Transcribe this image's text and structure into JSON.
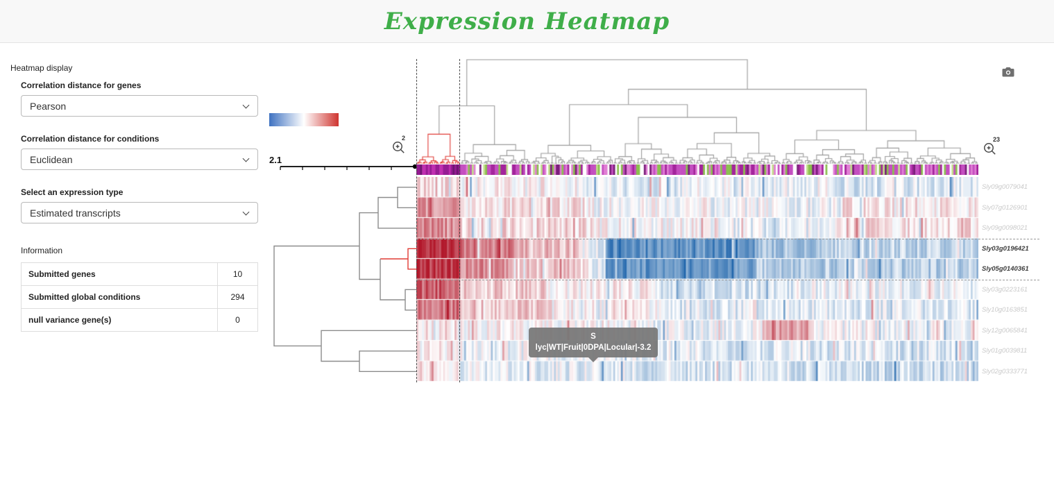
{
  "header": {
    "title": "Expression Heatmap"
  },
  "icons": {
    "camera": "camera-icon",
    "zoom": "zoom-in-magnifier-icon",
    "chevron": "chevron-down-icon"
  },
  "sidebar": {
    "section_label": "Heatmap display",
    "controls": [
      {
        "label": "Correlation distance for genes",
        "value": "Pearson"
      },
      {
        "label": "Correlation distance for conditions",
        "value": "Euclidean"
      },
      {
        "label": "Select an expression type",
        "value": "Estimated transcripts"
      }
    ],
    "information": {
      "label": "Information",
      "rows": [
        {
          "label": "Submitted genes",
          "value": "10"
        },
        {
          "label": "Submitted global conditions",
          "value": "294"
        },
        {
          "label": "null variance gene(s)",
          "value": "0"
        }
      ]
    }
  },
  "chart_data": {
    "type": "heatmap",
    "title": "Expression Heatmap",
    "n_conditions": 294,
    "n_genes": 10,
    "distance_threshold": "2.1",
    "zoom_left_badge": "2",
    "zoom_right_badge": "23",
    "genes": [
      {
        "label": "Sly09g0079041",
        "emphasized": false
      },
      {
        "label": "Sly07g0126901",
        "emphasized": false
      },
      {
        "label": "Sly09g0098021",
        "emphasized": false
      },
      {
        "label": "Sly03g0196421",
        "emphasized": true
      },
      {
        "label": "Sly05g0140361",
        "emphasized": true
      },
      {
        "label": "Sly03g0223161",
        "emphasized": false
      },
      {
        "label": "Sly10g0163851",
        "emphasized": false
      },
      {
        "label": "Sly12g0065841",
        "emphasized": false
      },
      {
        "label": "Sly01g0039811",
        "emphasized": false
      },
      {
        "label": "Sly02g0333771",
        "emphasized": false
      }
    ],
    "selected_genes": [
      "Sly03g0196421",
      "Sly05g0140361"
    ],
    "selected_columns": [
      0,
      23
    ],
    "tooltip": {
      "text": "S lyc|WT|Fruit|0DPA|Locular|-3.2"
    },
    "colors": {
      "low": "#2166ac",
      "mid": "#ffffff",
      "high": "#b2182b",
      "dendrogram": "#9a9a9a",
      "selected_cluster": "#e03a34"
    },
    "legend": {
      "colors": [
        "#3f72c1",
        "#ffffff",
        "#cf3530"
      ]
    },
    "row_profiles": [
      [
        [
          0.077,
          0.18
        ],
        [
          0.21,
          0.03
        ],
        [
          0.21,
          -0.12
        ],
        [
          0.25,
          -0.06
        ],
        [
          0.253,
          -0.15
        ]
      ],
      [
        [
          0.077,
          0.42
        ],
        [
          0.24,
          0.12
        ],
        [
          0.2,
          0.0
        ],
        [
          0.24,
          -0.06
        ],
        [
          0.243,
          0.1
        ]
      ],
      [
        [
          0.077,
          0.5
        ],
        [
          0.24,
          0.15
        ],
        [
          0.23,
          0.02
        ],
        [
          0.2,
          -0.08
        ],
        [
          0.253,
          0.12
        ]
      ],
      [
        [
          0.077,
          0.95
        ],
        [
          0.1,
          0.55
        ],
        [
          0.13,
          0.28
        ],
        [
          0.03,
          -0.1
        ],
        [
          0.27,
          -0.72
        ],
        [
          0.12,
          -0.4
        ],
        [
          0.273,
          -0.28
        ]
      ],
      [
        [
          0.077,
          0.9
        ],
        [
          0.1,
          0.48
        ],
        [
          0.13,
          0.22
        ],
        [
          0.03,
          -0.15
        ],
        [
          0.27,
          -0.68
        ],
        [
          0.12,
          -0.35
        ],
        [
          0.273,
          -0.33
        ]
      ],
      [
        [
          0.077,
          0.68
        ],
        [
          0.15,
          0.22
        ],
        [
          0.2,
          0.05
        ],
        [
          0.25,
          -0.18
        ],
        [
          0.323,
          -0.08
        ]
      ],
      [
        [
          0.077,
          0.58
        ],
        [
          0.17,
          0.24
        ],
        [
          0.2,
          0.02
        ],
        [
          0.25,
          -0.12
        ],
        [
          0.303,
          -0.14
        ]
      ],
      [
        [
          0.077,
          0.12
        ],
        [
          0.3,
          0.02
        ],
        [
          0.24,
          -0.06
        ],
        [
          0.09,
          0.38
        ],
        [
          0.293,
          -0.04
        ]
      ],
      [
        [
          0.077,
          0.06
        ],
        [
          0.3,
          -0.05
        ],
        [
          0.3,
          -0.12
        ],
        [
          0.323,
          -0.16
        ]
      ],
      [
        [
          0.077,
          0.12
        ],
        [
          0.3,
          -0.1
        ],
        [
          0.3,
          -0.16
        ],
        [
          0.323,
          -0.22
        ]
      ]
    ],
    "annotation": {
      "palette": [
        [
          "#c44fc0",
          0.3
        ],
        [
          "#a4259c",
          0.18
        ],
        [
          "#e07fd4",
          0.14
        ],
        [
          "#ffffff",
          0.12
        ],
        [
          "#8bbf4f",
          0.14
        ],
        [
          "#c2dd8a",
          0.07
        ],
        [
          "#7a1f7a",
          0.05
        ]
      ],
      "left_cluster_palette": [
        [
          "#951b93",
          0.45
        ],
        [
          "#c030b0",
          0.35
        ],
        [
          "#6d1570",
          0.2
        ]
      ]
    },
    "col_dendrogram": {
      "seed": 11,
      "forced_root_split": 60,
      "forced_left_split": 23
    },
    "row_dendrogram": [
      {
        "c": "gray",
        "pts": [
          [
            212,
            14.8
          ],
          [
            185,
            14.8
          ],
          [
            185,
            44.3
          ],
          [
            212,
            44.3
          ]
        ]
      },
      {
        "c": "gray",
        "pts": [
          [
            185,
            29.5
          ],
          [
            157,
            29.5
          ],
          [
            157,
            73.8
          ],
          [
            212,
            73.8
          ]
        ]
      },
      {
        "c": "red",
        "pts": [
          [
            212,
            103.3
          ],
          [
            200,
            103.3
          ],
          [
            200,
            132.8
          ],
          [
            212,
            132.8
          ]
        ]
      },
      {
        "c": "red",
        "pts": [
          [
            200,
            118
          ],
          [
            160,
            118
          ]
        ]
      },
      {
        "c": "gray",
        "pts": [
          [
            212,
            162.3
          ],
          [
            196,
            162.3
          ],
          [
            196,
            191.8
          ],
          [
            212,
            191.8
          ]
        ]
      },
      {
        "c": "gray",
        "pts": [
          [
            196,
            177
          ],
          [
            160,
            177
          ],
          [
            160,
            118
          ]
        ]
      },
      {
        "c": "gray",
        "pts": [
          [
            157,
            51.6
          ],
          [
            130,
            51.6
          ],
          [
            130,
            147.5
          ],
          [
            160,
            147.5
          ]
        ]
      },
      {
        "c": "gray",
        "pts": [
          [
            212,
            250.8
          ],
          [
            130,
            250.8
          ],
          [
            130,
            280.3
          ],
          [
            212,
            280.3
          ]
        ]
      },
      {
        "c": "gray",
        "pts": [
          [
            212,
            221.3
          ],
          [
            75,
            221.3
          ],
          [
            75,
            265.5
          ],
          [
            130,
            265.5
          ]
        ]
      },
      {
        "c": "gray",
        "pts": [
          [
            130,
            99.5
          ],
          [
            7,
            99.5
          ],
          [
            7,
            243.4
          ],
          [
            75,
            243.4
          ]
        ]
      }
    ]
  }
}
